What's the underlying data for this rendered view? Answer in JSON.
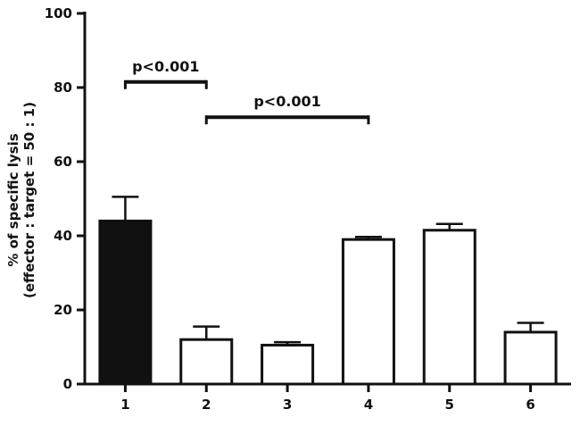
{
  "chart_data": {
    "type": "bar",
    "categories": [
      "1",
      "2",
      "3",
      "4",
      "5",
      "6"
    ],
    "values": [
      44,
      12,
      10.5,
      39,
      41.5,
      14
    ],
    "errors": [
      6.5,
      3.5,
      0.8,
      0.7,
      1.7,
      2.5
    ],
    "fills": [
      "#111111",
      "#ffffff",
      "#ffffff",
      "#ffffff",
      "#ffffff",
      "#ffffff"
    ],
    "ylabel_line1": "% of specific lysis",
    "ylabel_line2": "(effector : target = 50 : 1)",
    "ylim": [
      0,
      100
    ],
    "yticks": [
      0,
      20,
      40,
      60,
      80,
      100
    ],
    "grid": false,
    "significance": [
      {
        "from": 1,
        "to": 2,
        "y": 81.5,
        "label": "p<0.001"
      },
      {
        "from": 2,
        "to": 4,
        "y": 72,
        "label": "p<0.001"
      }
    ]
  }
}
